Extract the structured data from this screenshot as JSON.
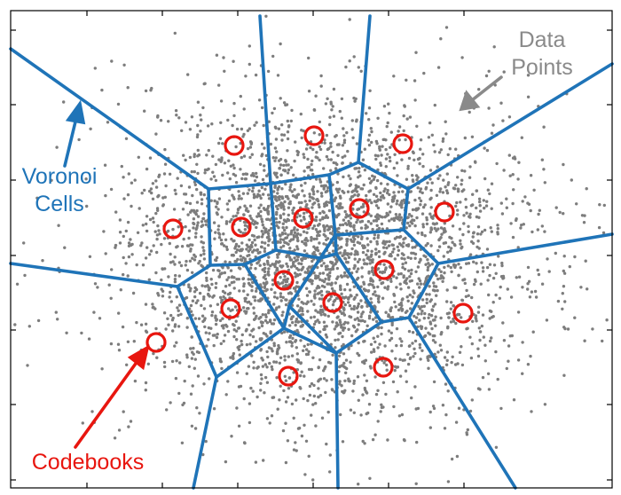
{
  "labels": {
    "data_points": {
      "lines": [
        "Data",
        "Points"
      ],
      "color": "#8a8a8a"
    },
    "voronoi_cells": {
      "lines": [
        "Voronoi",
        "Cells"
      ],
      "color": "#1f74b8"
    },
    "codebooks": {
      "lines": [
        "Codebooks"
      ],
      "color": "#e8160f"
    }
  },
  "colors": {
    "points": "#7d7d7d",
    "cells": "#1f74b8",
    "codebook_ring": "#e8160f",
    "frame": "#000000"
  }
}
